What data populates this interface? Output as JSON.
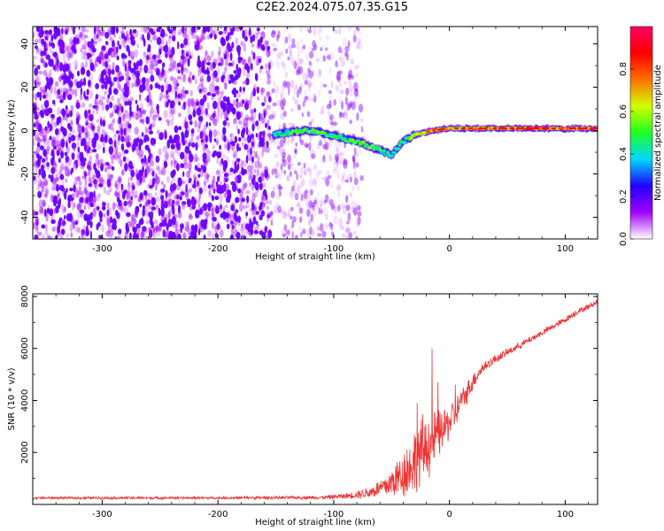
{
  "title": "C2E2.2024.075.07.35.G15",
  "chart_data": [
    {
      "type": "heatmap",
      "xlabel": "Height of straight line (km)",
      "ylabel": "Frequency (Hz)",
      "xlim": [
        -360,
        128
      ],
      "ylim": [
        -50,
        48
      ],
      "xticks": [
        -300,
        -200,
        -100,
        0,
        100
      ],
      "yticks": [
        -40,
        -20,
        0,
        20,
        40
      ],
      "colorbar": {
        "label": "Normalized spectral amplitude",
        "range": [
          0.0,
          1.0
        ],
        "ticks": [
          0.0,
          0.2,
          0.4,
          0.6,
          0.8
        ],
        "colors": [
          "#ffffff",
          "#a000ff",
          "#2200ff",
          "#00d8ff",
          "#20ff20",
          "#d0ff00",
          "#ff7000",
          "#ff0000",
          "#ff0066"
        ]
      },
      "noise_region": {
        "x_from": -360,
        "x_to": -155,
        "level": 0.12
      },
      "sparse_noise_region": {
        "x_from": -155,
        "x_to": -75,
        "level": 0.04
      },
      "ridge": [
        {
          "x": -152,
          "y": -2,
          "amp": 0.35
        },
        {
          "x": -140,
          "y": -1,
          "amp": 0.45
        },
        {
          "x": -125,
          "y": 0,
          "amp": 0.5
        },
        {
          "x": -110,
          "y": -1,
          "amp": 0.5
        },
        {
          "x": -95,
          "y": -3,
          "amp": 0.45
        },
        {
          "x": -80,
          "y": -5,
          "amp": 0.5
        },
        {
          "x": -70,
          "y": -7,
          "amp": 0.5
        },
        {
          "x": -60,
          "y": -9,
          "amp": 0.45
        },
        {
          "x": -50,
          "y": -11,
          "amp": 0.4
        },
        {
          "x": -40,
          "y": -5,
          "amp": 0.45
        },
        {
          "x": -30,
          "y": -2,
          "amp": 0.55
        },
        {
          "x": -15,
          "y": 0,
          "amp": 0.7
        },
        {
          "x": 0,
          "y": 1,
          "amp": 0.65
        },
        {
          "x": 20,
          "y": 1,
          "amp": 0.7
        },
        {
          "x": 50,
          "y": 1,
          "amp": 0.75
        },
        {
          "x": 80,
          "y": 1,
          "amp": 0.8
        },
        {
          "x": 100,
          "y": 1,
          "amp": 0.75
        },
        {
          "x": 128,
          "y": 1,
          "amp": 0.8
        }
      ]
    },
    {
      "type": "line",
      "xlabel": "Height of straight line (km)",
      "ylabel": "SNR (10 * v/v)",
      "xlim": [
        -360,
        128
      ],
      "ylim": [
        0,
        8100
      ],
      "xticks": [
        -300,
        -200,
        -100,
        0,
        100
      ],
      "yticks": [
        2000,
        4000,
        6000,
        8000
      ],
      "series": [
        {
          "color": "#ee3333",
          "x": [
            -360,
            -300,
            -250,
            -200,
            -150,
            -110,
            -90,
            -70,
            -55,
            -45,
            -35,
            -28,
            -22,
            -17,
            -12,
            -8,
            -4,
            0,
            5,
            10,
            15,
            20,
            25,
            30,
            40,
            50,
            60,
            70,
            80,
            90,
            100,
            110,
            120,
            128
          ],
          "y": [
            250,
            250,
            250,
            250,
            260,
            270,
            320,
            450,
            700,
            1000,
            1400,
            1800,
            2100,
            2350,
            2550,
            2750,
            2950,
            3200,
            3500,
            3900,
            4300,
            4700,
            5050,
            5300,
            5600,
            5850,
            6100,
            6350,
            6600,
            6850,
            7100,
            7400,
            7600,
            7800
          ],
          "noise_amplitude": [
            60,
            60,
            60,
            60,
            70,
            80,
            120,
            250,
            500,
            900,
            1300,
            1500,
            1600,
            1400,
            1200,
            1000,
            900,
            800,
            700,
            600,
            500,
            400,
            300,
            250,
            200,
            180,
            160,
            150,
            150,
            140,
            140,
            130,
            130,
            130
          ],
          "spikes": [
            {
              "x": -28,
              "y": 3900
            },
            {
              "x": -15,
              "y": 6000
            },
            {
              "x": -10,
              "y": 4700
            },
            {
              "x": 5,
              "y": 4600
            },
            {
              "x": 10,
              "y": 4300
            }
          ]
        }
      ]
    }
  ]
}
